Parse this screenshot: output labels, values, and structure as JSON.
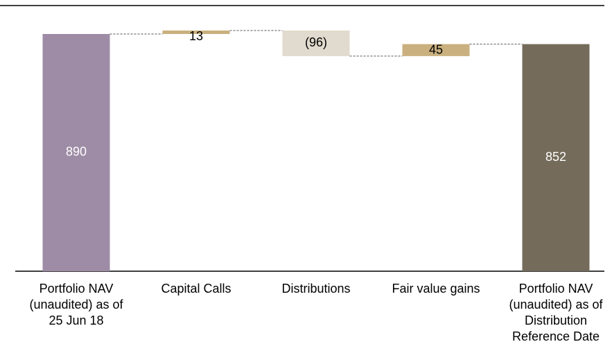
{
  "chart_data": {
    "type": "waterfall",
    "categories": [
      "Portfolio NAV (unaudited) as of 25 Jun 18",
      "Capital Calls",
      "Distributions",
      "Fair value gains",
      "Portfolio NAV (unaudited) as of Distribution Reference Date"
    ],
    "values": [
      890,
      13,
      -96,
      45,
      852
    ],
    "value_labels": [
      "890",
      "13",
      "(96)",
      "45",
      "852"
    ],
    "colors": [
      "#9e8ca6",
      "#c9b07e",
      "#e1dace",
      "#c9b07e",
      "#756b5a"
    ]
  }
}
